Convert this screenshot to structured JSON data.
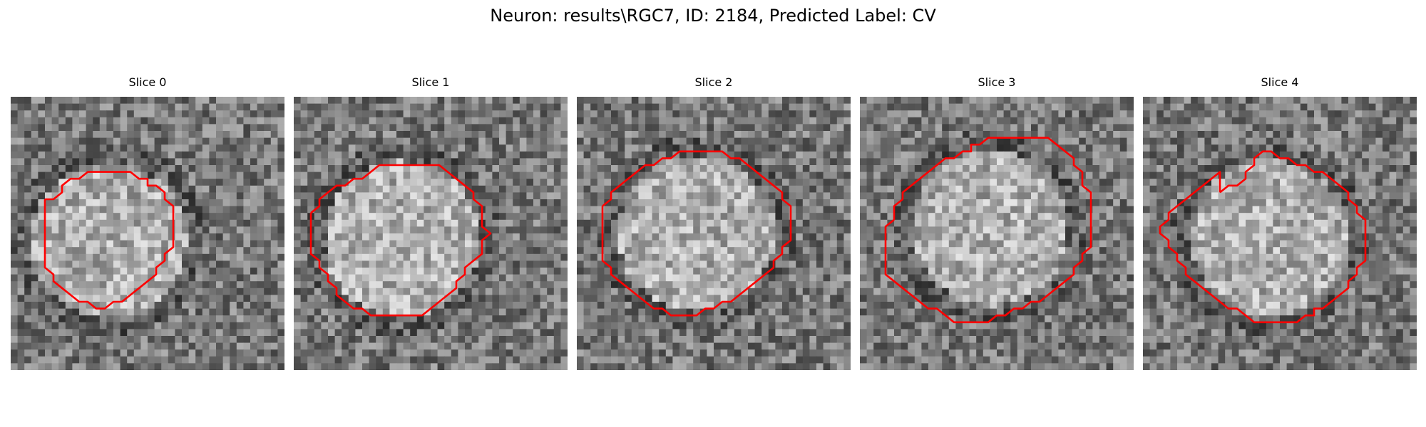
{
  "figure": {
    "title": "Neuron: results\\RGC7, ID: 2184, Predicted Label: CV"
  },
  "slices": [
    {
      "title": "Slice 0",
      "contour": [
        [
          4,
          15
        ],
        [
          5,
          15
        ],
        [
          6,
          14
        ],
        [
          6,
          13
        ],
        [
          7,
          12
        ],
        [
          8,
          12
        ],
        [
          9,
          11
        ],
        [
          14,
          11
        ],
        [
          15,
          12
        ],
        [
          16,
          12
        ],
        [
          16,
          13
        ],
        [
          17,
          13
        ],
        [
          18,
          14
        ],
        [
          18,
          15
        ],
        [
          19,
          16
        ],
        [
          19,
          22
        ],
        [
          18,
          23
        ],
        [
          18,
          24
        ],
        [
          17,
          25
        ],
        [
          17,
          26
        ],
        [
          16,
          27
        ],
        [
          15,
          28
        ],
        [
          14,
          29
        ],
        [
          13,
          30
        ],
        [
          12,
          30
        ],
        [
          11,
          31
        ],
        [
          10,
          31
        ],
        [
          9,
          30
        ],
        [
          8,
          30
        ],
        [
          7,
          29
        ],
        [
          6,
          28
        ],
        [
          5,
          27
        ],
        [
          5,
          26
        ],
        [
          4,
          25
        ],
        [
          4,
          22
        ],
        [
          4,
          16
        ]
      ]
    },
    {
      "title": "Slice 1",
      "contour": [
        [
          2,
          17
        ],
        [
          3,
          16
        ],
        [
          3,
          15
        ],
        [
          4,
          14
        ],
        [
          5,
          13
        ],
        [
          6,
          13
        ],
        [
          7,
          12
        ],
        [
          8,
          12
        ],
        [
          9,
          11
        ],
        [
          10,
          10
        ],
        [
          17,
          10
        ],
        [
          18,
          11
        ],
        [
          19,
          12
        ],
        [
          20,
          13
        ],
        [
          21,
          14
        ],
        [
          21,
          15
        ],
        [
          22,
          16
        ],
        [
          22,
          17
        ],
        [
          22,
          18
        ],
        [
          22,
          19
        ],
        [
          23,
          20
        ],
        [
          22,
          21
        ],
        [
          22,
          22
        ],
        [
          22,
          23
        ],
        [
          21,
          24
        ],
        [
          20,
          25
        ],
        [
          20,
          26
        ],
        [
          19,
          27
        ],
        [
          19,
          28
        ],
        [
          18,
          29
        ],
        [
          17,
          30
        ],
        [
          16,
          31
        ],
        [
          15,
          32
        ],
        [
          9,
          32
        ],
        [
          8,
          31
        ],
        [
          7,
          31
        ],
        [
          6,
          30
        ],
        [
          5,
          29
        ],
        [
          5,
          28
        ],
        [
          4,
          27
        ],
        [
          4,
          26
        ],
        [
          3,
          25
        ],
        [
          3,
          24
        ],
        [
          2,
          23
        ],
        [
          2,
          18
        ]
      ]
    },
    {
      "title": "Slice 2",
      "contour": [
        [
          3,
          16
        ],
        [
          4,
          15
        ],
        [
          4,
          14
        ],
        [
          5,
          13
        ],
        [
          6,
          12
        ],
        [
          7,
          11
        ],
        [
          8,
          10
        ],
        [
          9,
          10
        ],
        [
          10,
          9
        ],
        [
          11,
          9
        ],
        [
          12,
          8
        ],
        [
          17,
          8
        ],
        [
          18,
          9
        ],
        [
          19,
          9
        ],
        [
          20,
          10
        ],
        [
          21,
          11
        ],
        [
          22,
          12
        ],
        [
          23,
          13
        ],
        [
          24,
          14
        ],
        [
          24,
          15
        ],
        [
          25,
          16
        ],
        [
          25,
          21
        ],
        [
          24,
          22
        ],
        [
          24,
          23
        ],
        [
          23,
          24
        ],
        [
          23,
          25
        ],
        [
          22,
          26
        ],
        [
          21,
          27
        ],
        [
          20,
          28
        ],
        [
          19,
          29
        ],
        [
          18,
          30
        ],
        [
          17,
          30
        ],
        [
          16,
          31
        ],
        [
          15,
          31
        ],
        [
          14,
          32
        ],
        [
          11,
          32
        ],
        [
          10,
          31
        ],
        [
          9,
          31
        ],
        [
          8,
          30
        ],
        [
          7,
          29
        ],
        [
          6,
          28
        ],
        [
          5,
          27
        ],
        [
          4,
          26
        ],
        [
          4,
          25
        ],
        [
          3,
          24
        ],
        [
          3,
          17
        ]
      ]
    },
    {
      "title": "Slice 3",
      "contour": [
        [
          4,
          18
        ],
        [
          4,
          16
        ],
        [
          5,
          15
        ],
        [
          5,
          14
        ],
        [
          6,
          13
        ],
        [
          7,
          12
        ],
        [
          8,
          11
        ],
        [
          9,
          10
        ],
        [
          10,
          9
        ],
        [
          11,
          9
        ],
        [
          12,
          8
        ],
        [
          13,
          8
        ],
        [
          13,
          7
        ],
        [
          14,
          7
        ],
        [
          15,
          6
        ],
        [
          16,
          6
        ],
        [
          17,
          6
        ],
        [
          18,
          6
        ],
        [
          19,
          6
        ],
        [
          20,
          6
        ],
        [
          21,
          6
        ],
        [
          22,
          6
        ],
        [
          23,
          7
        ],
        [
          24,
          8
        ],
        [
          25,
          9
        ],
        [
          25,
          10
        ],
        [
          26,
          11
        ],
        [
          26,
          12
        ],
        [
          26,
          13
        ],
        [
          27,
          14
        ],
        [
          27,
          16
        ],
        [
          27,
          17
        ],
        [
          27,
          18
        ],
        [
          27,
          19
        ],
        [
          27,
          20
        ],
        [
          27,
          21
        ],
        [
          27,
          22
        ],
        [
          26,
          23
        ],
        [
          26,
          24
        ],
        [
          25,
          25
        ],
        [
          25,
          26
        ],
        [
          24,
          27
        ],
        [
          23,
          28
        ],
        [
          22,
          29
        ],
        [
          21,
          30
        ],
        [
          20,
          30
        ],
        [
          19,
          31
        ],
        [
          18,
          31
        ],
        [
          17,
          32
        ],
        [
          16,
          32
        ],
        [
          15,
          33
        ],
        [
          14,
          33
        ],
        [
          13,
          33
        ],
        [
          12,
          33
        ],
        [
          11,
          33
        ],
        [
          10,
          32
        ],
        [
          9,
          31
        ],
        [
          8,
          31
        ],
        [
          7,
          30
        ],
        [
          6,
          29
        ],
        [
          5,
          28
        ],
        [
          4,
          27
        ],
        [
          3,
          26
        ],
        [
          3,
          25
        ],
        [
          3,
          24
        ],
        [
          3,
          23
        ],
        [
          3,
          22
        ],
        [
          3,
          21
        ],
        [
          3,
          20
        ],
        [
          3,
          19
        ],
        [
          4,
          18
        ]
      ]
    },
    {
      "title": "Slice 4",
      "contour": [
        [
          9,
          14
        ],
        [
          10,
          13
        ],
        [
          11,
          13
        ],
        [
          12,
          12
        ],
        [
          12,
          11
        ],
        [
          13,
          10
        ],
        [
          13,
          9
        ],
        [
          14,
          8
        ],
        [
          15,
          8
        ],
        [
          16,
          9
        ],
        [
          17,
          9
        ],
        [
          18,
          10
        ],
        [
          19,
          10
        ],
        [
          20,
          11
        ],
        [
          21,
          11
        ],
        [
          22,
          12
        ],
        [
          23,
          13
        ],
        [
          24,
          14
        ],
        [
          24,
          15
        ],
        [
          25,
          16
        ],
        [
          25,
          17
        ],
        [
          26,
          18
        ],
        [
          26,
          19
        ],
        [
          26,
          20
        ],
        [
          26,
          21
        ],
        [
          26,
          22
        ],
        [
          26,
          23
        ],
        [
          26,
          24
        ],
        [
          25,
          25
        ],
        [
          25,
          26
        ],
        [
          24,
          27
        ],
        [
          24,
          28
        ],
        [
          23,
          29
        ],
        [
          22,
          30
        ],
        [
          21,
          31
        ],
        [
          20,
          31
        ],
        [
          20,
          32
        ],
        [
          19,
          32
        ],
        [
          18,
          33
        ],
        [
          17,
          33
        ],
        [
          16,
          33
        ],
        [
          15,
          33
        ],
        [
          14,
          33
        ],
        [
          13,
          33
        ],
        [
          12,
          32
        ],
        [
          11,
          31
        ],
        [
          10,
          31
        ],
        [
          9,
          30
        ],
        [
          8,
          29
        ],
        [
          7,
          28
        ],
        [
          6,
          27
        ],
        [
          5,
          26
        ],
        [
          5,
          25
        ],
        [
          4,
          24
        ],
        [
          4,
          23
        ],
        [
          3,
          22
        ],
        [
          3,
          21
        ],
        [
          2,
          20
        ],
        [
          2,
          19
        ],
        [
          3,
          18
        ],
        [
          3,
          17
        ],
        [
          4,
          16
        ],
        [
          5,
          15
        ],
        [
          6,
          14
        ],
        [
          7,
          13
        ],
        [
          8,
          12
        ],
        [
          9,
          11
        ],
        [
          9,
          14
        ]
      ]
    }
  ],
  "style": {
    "contour_color": "#ff0000"
  }
}
